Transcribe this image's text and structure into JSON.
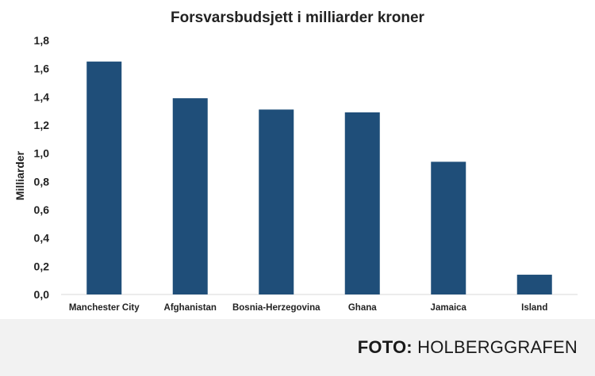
{
  "chart_data": {
    "type": "bar",
    "title": "Forsvarsbudsjett i milliarder kroner",
    "xlabel": "",
    "ylabel": "Milliarder",
    "categories": [
      "Manchester City",
      "Afghanistan",
      "Bosnia-Herzegovina",
      "Ghana",
      "Jamaica",
      "Island"
    ],
    "values": [
      1.65,
      1.39,
      1.31,
      1.29,
      0.94,
      0.14
    ],
    "ylim": [
      0,
      1.8
    ],
    "yticks": [
      "0,0",
      "0,2",
      "0,4",
      "0,6",
      "0,8",
      "1,0",
      "1,2",
      "1,4",
      "1,6",
      "1,8"
    ],
    "bar_color": "#1f4e79",
    "grid": false,
    "legend": "none"
  },
  "credit": {
    "label": "FOTO:",
    "source": "HOLBERGGRAFEN"
  }
}
